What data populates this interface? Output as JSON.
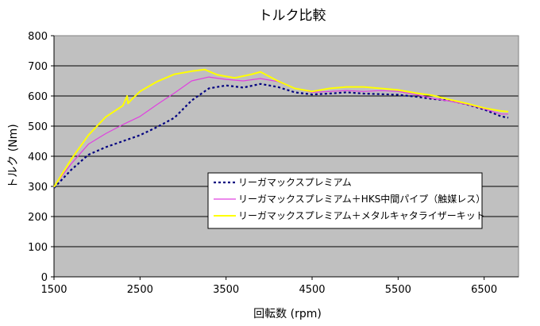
{
  "chart_data": {
    "type": "line",
    "title": "トルク比較",
    "xlabel": "回転数 (rpm)",
    "ylabel": "トルク (Nm)",
    "xlim": [
      1500,
      6900
    ],
    "ylim": [
      0,
      800
    ],
    "xticks": [
      1500,
      2500,
      3500,
      4500,
      5500,
      6500
    ],
    "yticks": [
      0,
      100,
      200,
      300,
      400,
      500,
      600,
      700,
      800
    ],
    "grid": "horizontal",
    "legend_position": "center-right",
    "colors": {
      "plot_background": "#c0c0c0",
      "gridline": "#000000",
      "frame": "#808080"
    },
    "series": [
      {
        "name": "リーガマックスプレミアム",
        "color": "#000080",
        "style": "dotted",
        "x": [
          1500,
          1700,
          1900,
          2100,
          2300,
          2500,
          2700,
          2900,
          3100,
          3300,
          3500,
          3700,
          3900,
          4100,
          4300,
          4500,
          4700,
          4900,
          5100,
          5300,
          5500,
          5700,
          5900,
          6100,
          6300,
          6500,
          6700,
          6780
        ],
        "y": [
          295,
          355,
          405,
          430,
          450,
          470,
          497,
          528,
          585,
          625,
          635,
          628,
          640,
          630,
          612,
          605,
          608,
          612,
          608,
          606,
          604,
          598,
          590,
          585,
          572,
          555,
          532,
          528
        ]
      },
      {
        "name": "リーガマックスプレミアム＋HKS中間パイプ（触媒レス）",
        "color": "#e040e0",
        "style": "solid",
        "x": [
          1500,
          1700,
          1900,
          2100,
          2300,
          2500,
          2700,
          2900,
          3100,
          3300,
          3500,
          3700,
          3900,
          4100,
          4300,
          4500,
          4700,
          4900,
          5100,
          5300,
          5500,
          5700,
          5900,
          6100,
          6300,
          6500,
          6700,
          6780
        ],
        "y": [
          300,
          375,
          440,
          475,
          505,
          532,
          572,
          610,
          650,
          663,
          655,
          650,
          658,
          648,
          625,
          612,
          615,
          618,
          615,
          618,
          615,
          605,
          592,
          583,
          572,
          557,
          540,
          540
        ]
      },
      {
        "name": "リーガマックスプレミアム＋メタルキャタライザーキット",
        "color": "#ffff00",
        "style": "solid",
        "x": [
          1500,
          1700,
          1900,
          2100,
          2300,
          2350,
          2360,
          2400,
          2500,
          2700,
          2900,
          3100,
          3250,
          3400,
          3600,
          3800,
          3900,
          4100,
          4300,
          4500,
          4700,
          4900,
          5100,
          5300,
          5500,
          5700,
          5900,
          6100,
          6300,
          6500,
          6700,
          6780
        ],
        "y": [
          298,
          390,
          470,
          530,
          568,
          600,
          575,
          588,
          615,
          648,
          672,
          682,
          688,
          670,
          660,
          672,
          680,
          650,
          625,
          615,
          625,
          630,
          630,
          625,
          620,
          610,
          602,
          588,
          575,
          560,
          550,
          548
        ]
      }
    ]
  }
}
